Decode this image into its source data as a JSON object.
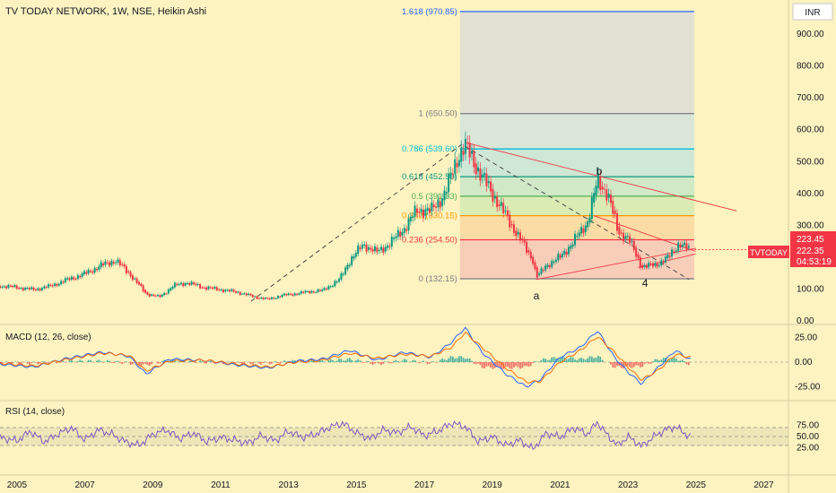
{
  "header": {
    "title": "TV TODAY NETWORK, 1W, NSE, Heikin Ashi",
    "currency": "INR"
  },
  "price_axis": {
    "ticks": [
      "900.00",
      "800.00",
      "700.00",
      "600.00",
      "500.00",
      "400.00",
      "300.00",
      "200.00",
      "100.00",
      "0.00"
    ],
    "tick_values": [
      900,
      800,
      700,
      600,
      500,
      400,
      300,
      200,
      100,
      0
    ],
    "badges": {
      "ticker": "TVTODAY",
      "price": "223.45",
      "close": "222.35",
      "countdown": "04:53:19"
    }
  },
  "time_axis": {
    "labels": [
      "2005",
      "2007",
      "2009",
      "2011",
      "2013",
      "2015",
      "2017",
      "2019",
      "2021",
      "2023",
      "2025",
      "2027"
    ]
  },
  "fib_levels": [
    {
      "label": "1.618 (970.85)",
      "value": 970.85,
      "color": "#2962ff"
    },
    {
      "label": "1 (650.50)",
      "value": 650.5,
      "color": "#787b86"
    },
    {
      "label": "0.786 (539.60)",
      "value": 539.6,
      "color": "#00bcd4"
    },
    {
      "label": "0.618 (452.50)",
      "value": 452.5,
      "color": "#089981"
    },
    {
      "label": "0.5 (391.33)",
      "value": 391.33,
      "color": "#4caf50"
    },
    {
      "label": "0.382 (330.15)",
      "value": 330.15,
      "color": "#ff9800"
    },
    {
      "label": "0.236 (254.50)",
      "value": 254.5,
      "color": "#f23645"
    },
    {
      "label": "0 (132.15)",
      "value": 132.15,
      "color": "#787b86"
    }
  ],
  "annotations": {
    "a": "a",
    "b": "b",
    "four": "4"
  },
  "macd": {
    "title": "MACD (12, 26, close)",
    "ticks": [
      "25.00",
      "0.00",
      "-25.00"
    ],
    "tick_values": [
      25,
      0,
      -25
    ]
  },
  "rsi": {
    "title": "RSI (14, close)",
    "ticks": [
      "75.00",
      "50.00",
      "25.00"
    ],
    "tick_values": [
      75,
      50,
      25
    ]
  },
  "colors": {
    "background": "#fdf3c0",
    "up": "#089981",
    "down": "#f23645",
    "macd_line": "#2962ff",
    "signal_line": "#ff6d00",
    "rsi_line": "#7e57c2",
    "badge": "#f23645"
  },
  "chart_data": {
    "type": "candlestick",
    "x_range": [
      2004.5,
      2027.7
    ],
    "ylim": [
      0,
      1010
    ],
    "price_series": [
      [
        2004.5,
        110
      ],
      [
        2005.0,
        105
      ],
      [
        2005.5,
        98
      ],
      [
        2006.0,
        110
      ],
      [
        2006.5,
        130
      ],
      [
        2007.0,
        148
      ],
      [
        2007.5,
        175
      ],
      [
        2007.9,
        190
      ],
      [
        2008.3,
        150
      ],
      [
        2008.8,
        85
      ],
      [
        2009.2,
        75
      ],
      [
        2009.6,
        110
      ],
      [
        2010.0,
        120
      ],
      [
        2010.5,
        105
      ],
      [
        2011.0,
        98
      ],
      [
        2011.5,
        90
      ],
      [
        2012.0,
        75
      ],
      [
        2012.4,
        68
      ],
      [
        2012.8,
        80
      ],
      [
        2013.2,
        85
      ],
      [
        2013.6,
        92
      ],
      [
        2014.0,
        95
      ],
      [
        2014.5,
        130
      ],
      [
        2014.8,
        190
      ],
      [
        2015.2,
        240
      ],
      [
        2015.6,
        215
      ],
      [
        2016.0,
        245
      ],
      [
        2016.4,
        290
      ],
      [
        2016.8,
        350
      ],
      [
        2017.2,
        345
      ],
      [
        2017.6,
        400
      ],
      [
        2018.0,
        520
      ],
      [
        2018.2,
        550
      ],
      [
        2018.6,
        470
      ],
      [
        2019.0,
        400
      ],
      [
        2019.4,
        330
      ],
      [
        2019.8,
        260
      ],
      [
        2020.2,
        190
      ],
      [
        2020.3,
        135
      ],
      [
        2020.6,
        175
      ],
      [
        2021.0,
        200
      ],
      [
        2021.4,
        250
      ],
      [
        2021.8,
        310
      ],
      [
        2022.1,
        440
      ],
      [
        2022.4,
        400
      ],
      [
        2022.7,
        280
      ],
      [
        2023.0,
        260
      ],
      [
        2023.4,
        170
      ],
      [
        2023.8,
        175
      ],
      [
        2024.2,
        200
      ],
      [
        2024.5,
        245
      ],
      [
        2024.8,
        223
      ]
    ],
    "macd_series": [
      [
        2004.5,
        -2
      ],
      [
        2005.5,
        -5
      ],
      [
        2006.5,
        4
      ],
      [
        2007.5,
        10
      ],
      [
        2008.3,
        6
      ],
      [
        2008.8,
        -12
      ],
      [
        2009.5,
        3
      ],
      [
        2010.5,
        2
      ],
      [
        2011.5,
        -3
      ],
      [
        2012.4,
        -6
      ],
      [
        2013.2,
        1
      ],
      [
        2014.0,
        3
      ],
      [
        2014.8,
        12
      ],
      [
        2015.6,
        2
      ],
      [
        2016.4,
        10
      ],
      [
        2017.2,
        5
      ],
      [
        2017.8,
        20
      ],
      [
        2018.2,
        35
      ],
      [
        2018.7,
        10
      ],
      [
        2019.4,
        -12
      ],
      [
        2020.0,
        -25
      ],
      [
        2020.4,
        -18
      ],
      [
        2021.0,
        5
      ],
      [
        2021.6,
        15
      ],
      [
        2022.1,
        32
      ],
      [
        2022.6,
        5
      ],
      [
        2023.0,
        -10
      ],
      [
        2023.4,
        -22
      ],
      [
        2023.9,
        -5
      ],
      [
        2024.4,
        12
      ],
      [
        2024.8,
        3
      ]
    ],
    "signal_series": [
      [
        2004.5,
        -1
      ],
      [
        2005.5,
        -4
      ],
      [
        2006.5,
        3
      ],
      [
        2007.5,
        9
      ],
      [
        2008.3,
        7
      ],
      [
        2008.8,
        -9
      ],
      [
        2009.5,
        1
      ],
      [
        2010.5,
        2
      ],
      [
        2011.5,
        -2
      ],
      [
        2012.4,
        -5
      ],
      [
        2013.2,
        0
      ],
      [
        2014.0,
        2
      ],
      [
        2014.8,
        9
      ],
      [
        2015.6,
        4
      ],
      [
        2016.4,
        8
      ],
      [
        2017.2,
        6
      ],
      [
        2017.8,
        15
      ],
      [
        2018.2,
        30
      ],
      [
        2018.7,
        15
      ],
      [
        2019.4,
        -6
      ],
      [
        2020.0,
        -20
      ],
      [
        2020.4,
        -20
      ],
      [
        2021.0,
        0
      ],
      [
        2021.6,
        12
      ],
      [
        2022.1,
        26
      ],
      [
        2022.6,
        10
      ],
      [
        2023.0,
        -5
      ],
      [
        2023.4,
        -18
      ],
      [
        2023.9,
        -8
      ],
      [
        2024.4,
        8
      ],
      [
        2024.8,
        5
      ]
    ],
    "rsi_series": [
      [
        2004.5,
        48
      ],
      [
        2005.0,
        40
      ],
      [
        2005.4,
        62
      ],
      [
        2005.8,
        38
      ],
      [
        2006.2,
        55
      ],
      [
        2006.6,
        70
      ],
      [
        2007.0,
        42
      ],
      [
        2007.4,
        65
      ],
      [
        2007.8,
        55
      ],
      [
        2008.2,
        38
      ],
      [
        2008.6,
        30
      ],
      [
        2009.0,
        55
      ],
      [
        2009.4,
        65
      ],
      [
        2009.8,
        45
      ],
      [
        2010.2,
        58
      ],
      [
        2010.6,
        38
      ],
      [
        2011.0,
        48
      ],
      [
        2011.4,
        42
      ],
      [
        2011.8,
        35
      ],
      [
        2012.2,
        52
      ],
      [
        2012.6,
        40
      ],
      [
        2013.0,
        62
      ],
      [
        2013.4,
        48
      ],
      [
        2013.8,
        55
      ],
      [
        2014.2,
        70
      ],
      [
        2014.6,
        80
      ],
      [
        2015.0,
        58
      ],
      [
        2015.4,
        45
      ],
      [
        2015.8,
        65
      ],
      [
        2016.2,
        58
      ],
      [
        2016.6,
        72
      ],
      [
        2017.0,
        52
      ],
      [
        2017.4,
        62
      ],
      [
        2017.8,
        80
      ],
      [
        2018.2,
        72
      ],
      [
        2018.6,
        38
      ],
      [
        2019.0,
        50
      ],
      [
        2019.4,
        30
      ],
      [
        2019.8,
        42
      ],
      [
        2020.2,
        22
      ],
      [
        2020.6,
        58
      ],
      [
        2021.0,
        48
      ],
      [
        2021.4,
        70
      ],
      [
        2021.8,
        55
      ],
      [
        2022.1,
        82
      ],
      [
        2022.4,
        52
      ],
      [
        2022.7,
        30
      ],
      [
        2023.0,
        50
      ],
      [
        2023.4,
        28
      ],
      [
        2023.8,
        52
      ],
      [
        2024.1,
        65
      ],
      [
        2024.4,
        72
      ],
      [
        2024.8,
        50
      ]
    ]
  }
}
